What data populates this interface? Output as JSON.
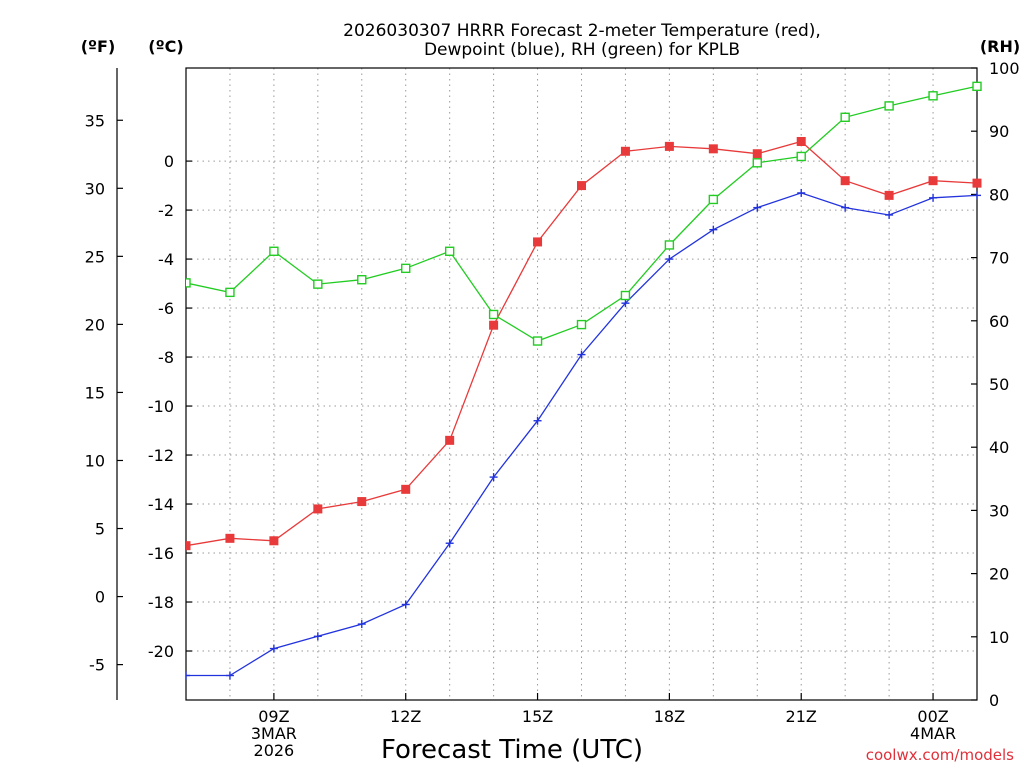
{
  "chart_data": {
    "type": "line",
    "title_lines": [
      "2026030307 HRRR Forecast 2-meter Temperature (red),",
      "Dewpoint (blue), RH (green) for KPLB"
    ],
    "xlabel": "Forecast Time (UTC)",
    "credit": "coolwx.com/models",
    "units": {
      "fahrenheit": "(ºF)",
      "celsius": "(ºC)",
      "rh": "(RH)"
    },
    "x_hours": [
      7,
      8,
      9,
      10,
      11,
      12,
      13,
      14,
      15,
      16,
      17,
      18,
      19,
      20,
      21,
      22,
      23,
      24,
      25
    ],
    "xlim": [
      7,
      25
    ],
    "x_ticks": [
      {
        "hour": 9,
        "lines": [
          "09Z",
          "3MAR",
          "2026"
        ]
      },
      {
        "hour": 12,
        "lines": [
          "12Z"
        ]
      },
      {
        "hour": 15,
        "lines": [
          "15Z"
        ]
      },
      {
        "hour": 18,
        "lines": [
          "18Z"
        ]
      },
      {
        "hour": 21,
        "lines": [
          "21Z"
        ]
      },
      {
        "hour": 24,
        "lines": [
          "00Z",
          "4MAR"
        ]
      }
    ],
    "celsius_axis": {
      "ylim": [
        -22.0,
        3.8
      ],
      "ticks": [
        0,
        -2,
        -4,
        -6,
        -8,
        -10,
        -12,
        -14,
        -16,
        -18,
        -20
      ]
    },
    "fahrenheit_axis": {
      "ticks": [
        35,
        30,
        25,
        20,
        15,
        10,
        5,
        0,
        -5
      ]
    },
    "rh_axis": {
      "ylim": [
        0,
        100
      ],
      "ticks": [
        100,
        90,
        80,
        70,
        60,
        50,
        40,
        30,
        20,
        10,
        0
      ]
    },
    "series": [
      {
        "name": "Temperature",
        "unit": "C",
        "color": "#e83a3a",
        "marker": "filled-square",
        "values": [
          -15.7,
          -15.4,
          -15.5,
          -14.2,
          -13.9,
          -13.4,
          -11.4,
          -6.7,
          -3.3,
          -1.0,
          0.4,
          0.6,
          0.5,
          0.3,
          0.8,
          -0.8,
          -1.4,
          -0.8,
          -0.9
        ]
      },
      {
        "name": "Dewpoint",
        "unit": "C",
        "color": "#2233dd",
        "marker": "plus",
        "values": [
          -21.0,
          -21.0,
          -19.9,
          -19.4,
          -18.9,
          -18.1,
          -15.6,
          -12.9,
          -10.6,
          -7.9,
          -5.8,
          -4.0,
          -2.8,
          -1.9,
          -1.3,
          -1.9,
          -2.2,
          -1.5,
          -1.4
        ]
      },
      {
        "name": "RH",
        "unit": "%",
        "color": "#22cc22",
        "marker": "open-square",
        "values": [
          66,
          64.5,
          71,
          65.8,
          66.5,
          68.3,
          71,
          61,
          56.8,
          59.4,
          64,
          72,
          79.2,
          85,
          86,
          92.2,
          94,
          95.6,
          97.1
        ]
      }
    ]
  }
}
